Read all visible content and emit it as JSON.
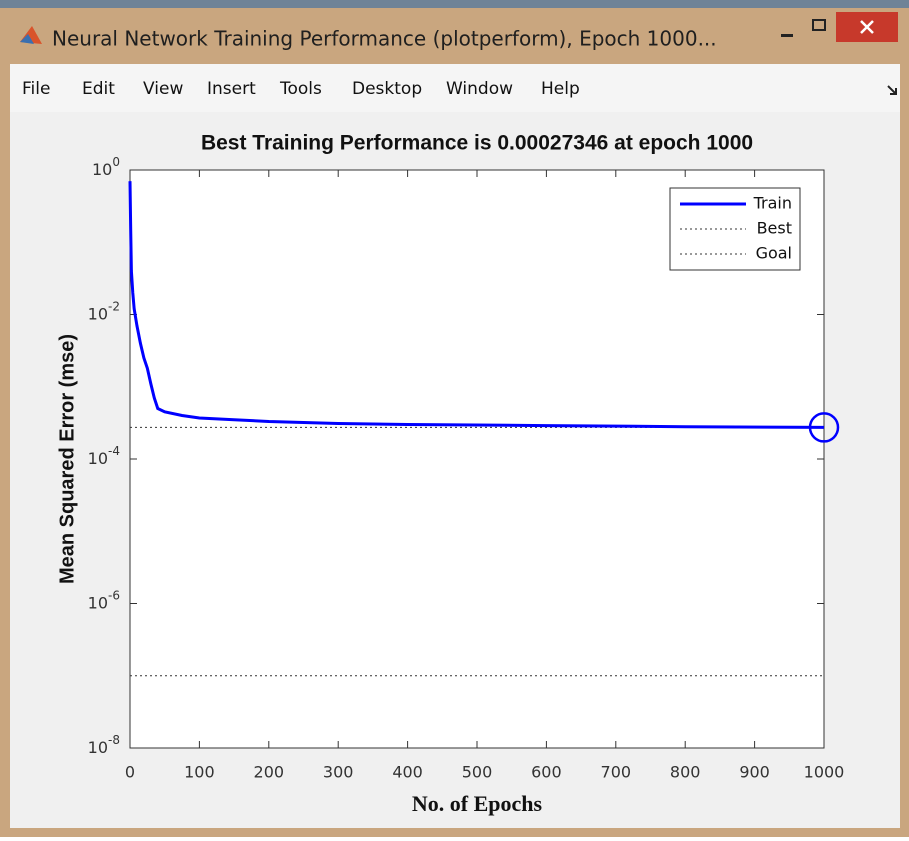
{
  "window": {
    "title": "Neural Network Training Performance (plotperform), Epoch 1000...",
    "menu": [
      "File",
      "Edit",
      "View",
      "Insert",
      "Tools",
      "Desktop",
      "Window",
      "Help"
    ]
  },
  "chart_data": {
    "type": "line",
    "title": "Best Training Performance is 0.00027346 at epoch 1000",
    "xlabel": "No. of  Epochs",
    "ylabel": "Mean Squared Error  (mse)",
    "series": [
      {
        "name": "Train",
        "color": "#0000ff",
        "x": [
          0,
          1,
          2,
          4,
          6,
          10,
          15,
          20,
          25,
          30,
          35,
          40,
          50,
          75,
          100,
          150,
          200,
          300,
          400,
          600,
          800,
          1000
        ],
        "values": [
          0.7,
          0.15,
          0.04,
          0.02,
          0.012,
          0.007,
          0.004,
          0.0025,
          0.0018,
          0.0011,
          0.0007,
          0.0005,
          0.00045,
          0.0004,
          0.00037,
          0.00035,
          0.00033,
          0.00031,
          0.0003,
          0.00029,
          0.00028,
          0.00027346
        ]
      }
    ],
    "best": {
      "name": "Best",
      "x": 1000,
      "value": 0.00027346,
      "color": "#333333"
    },
    "goal": {
      "name": "Goal",
      "value": 1e-07,
      "color": "#333333"
    },
    "xlim": [
      0,
      1000
    ],
    "xticks": [
      0,
      100,
      200,
      300,
      400,
      500,
      600,
      700,
      800,
      900,
      1000
    ],
    "ylim": [
      1e-08,
      1
    ],
    "log_y": true,
    "yticks": [
      {
        "value": 1,
        "label": "10^0"
      },
      {
        "value": 0.01,
        "label": "10^-2"
      },
      {
        "value": 0.0001,
        "label": "10^-4"
      },
      {
        "value": 1e-06,
        "label": "10^-6"
      },
      {
        "value": 1e-08,
        "label": "10^-8"
      }
    ],
    "legend": "top-right",
    "grid": false
  }
}
